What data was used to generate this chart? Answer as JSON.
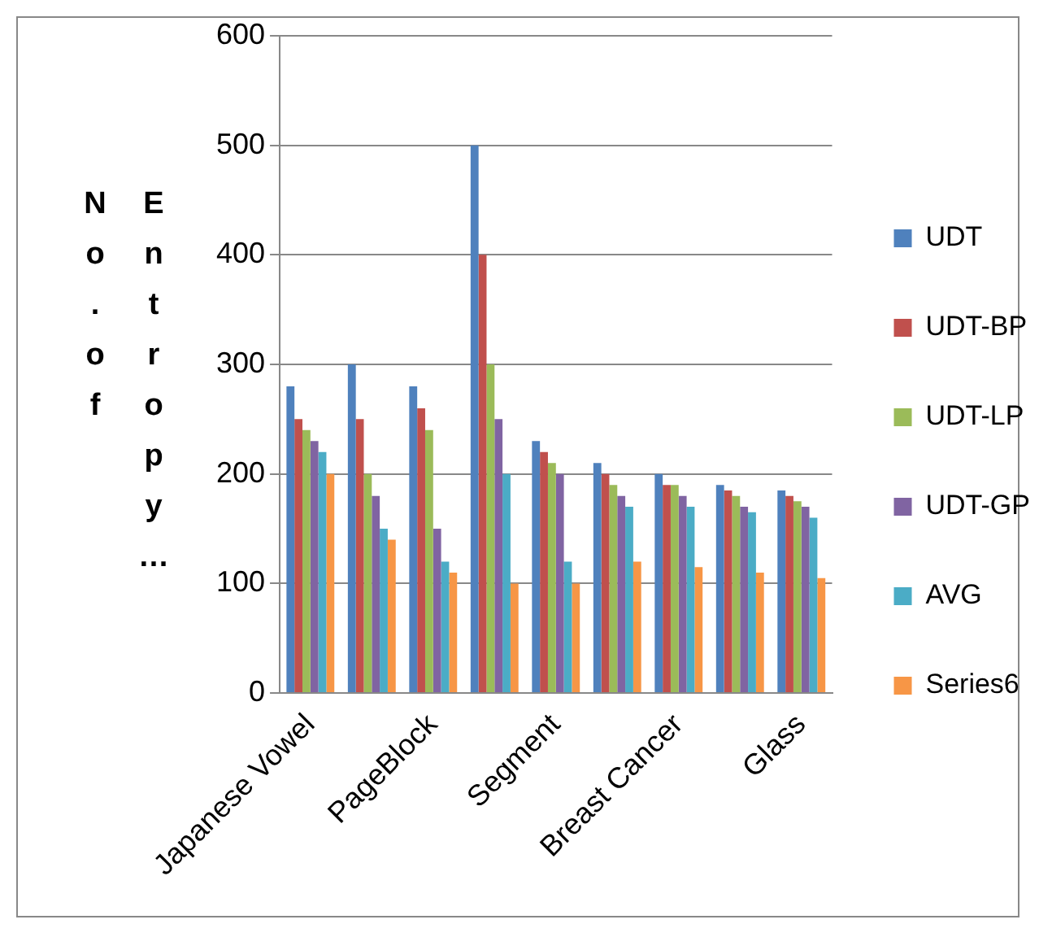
{
  "chart_data": {
    "type": "bar",
    "ylabel": "No.of Entropy…",
    "categories": [
      "Japanese Vowel",
      null,
      "PageBlock",
      null,
      "Segment",
      null,
      "Breast Cancer",
      null,
      "Glass"
    ],
    "series": [
      {
        "name": "UDT",
        "color": "#4f81bd",
        "values": [
          280,
          300,
          280,
          500,
          230,
          210,
          200,
          190,
          185
        ]
      },
      {
        "name": "UDT-BP",
        "color": "#c0504d",
        "values": [
          250,
          250,
          260,
          400,
          220,
          200,
          190,
          185,
          180
        ]
      },
      {
        "name": "UDT-LP",
        "color": "#9bbb59",
        "values": [
          240,
          200,
          240,
          300,
          210,
          190,
          190,
          180,
          175
        ]
      },
      {
        "name": "UDT-GP",
        "color": "#8064a2",
        "values": [
          230,
          180,
          150,
          250,
          200,
          180,
          180,
          170,
          170
        ]
      },
      {
        "name": "AVG",
        "color": "#4bacc6",
        "values": [
          220,
          150,
          120,
          200,
          120,
          170,
          170,
          165,
          160
        ]
      },
      {
        "name": "Series6",
        "color": "#f79646",
        "values": [
          200,
          140,
          110,
          100,
          100,
          120,
          115,
          110,
          105
        ]
      }
    ],
    "ylim": [
      0,
      600
    ],
    "yticks": [
      0,
      100,
      200,
      300,
      400,
      500,
      600
    ],
    "grid": "y",
    "legend": "right"
  }
}
